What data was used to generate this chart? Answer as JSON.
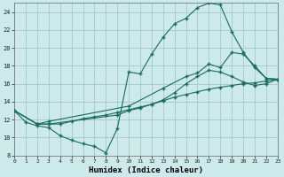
{
  "xlabel": "Humidex (Indice chaleur)",
  "bg_color": "#cceaea",
  "line_color": "#1a6b60",
  "grid_color": "#aacccc",
  "xlim": [
    0,
    23
  ],
  "ylim": [
    8,
    25
  ],
  "xticks": [
    0,
    1,
    2,
    3,
    4,
    5,
    6,
    7,
    8,
    9,
    10,
    11,
    12,
    13,
    14,
    15,
    16,
    17,
    18,
    19,
    20,
    21,
    22,
    23
  ],
  "yticks": [
    8,
    10,
    12,
    14,
    16,
    18,
    20,
    22,
    24
  ],
  "line1_x": [
    0,
    1,
    2,
    3,
    4,
    5,
    6,
    7,
    8,
    9,
    10,
    11,
    12,
    13,
    14,
    15,
    16,
    17,
    18,
    19,
    20,
    21,
    22,
    23
  ],
  "line1_y": [
    13.0,
    11.7,
    11.3,
    11.1,
    10.2,
    9.7,
    9.3,
    9.0,
    8.3,
    11.0,
    17.3,
    17.1,
    19.3,
    21.2,
    22.7,
    23.3,
    24.5,
    25.0,
    24.8,
    21.8,
    19.5,
    17.8,
    16.6,
    16.5
  ],
  "line2_x": [
    0,
    2,
    3,
    4,
    5,
    6,
    7,
    8,
    9,
    10,
    11,
    12,
    13,
    14,
    15,
    16,
    17,
    18,
    19,
    20,
    21,
    22,
    23
  ],
  "line2_y": [
    13.0,
    11.5,
    11.5,
    11.5,
    11.8,
    12.1,
    12.3,
    12.5,
    12.8,
    13.1,
    13.4,
    13.7,
    14.1,
    14.5,
    14.8,
    15.1,
    15.4,
    15.6,
    15.8,
    16.0,
    16.1,
    16.3,
    16.5
  ],
  "line3_x": [
    0,
    2,
    3,
    10,
    13,
    15,
    16,
    17,
    18,
    19,
    20,
    21,
    22,
    23
  ],
  "line3_y": [
    13.0,
    11.5,
    11.8,
    13.5,
    15.5,
    16.8,
    17.2,
    18.2,
    17.8,
    19.5,
    19.3,
    18.0,
    16.6,
    16.5
  ],
  "line4_x": [
    0,
    2,
    3,
    9,
    10,
    11,
    12,
    13,
    14,
    15,
    16,
    17,
    18,
    19,
    20,
    21,
    22,
    23
  ],
  "line4_y": [
    13.0,
    11.5,
    11.5,
    12.5,
    13.0,
    13.3,
    13.7,
    14.2,
    15.0,
    16.0,
    16.8,
    17.5,
    17.3,
    16.8,
    16.2,
    15.8,
    16.0,
    16.5
  ]
}
